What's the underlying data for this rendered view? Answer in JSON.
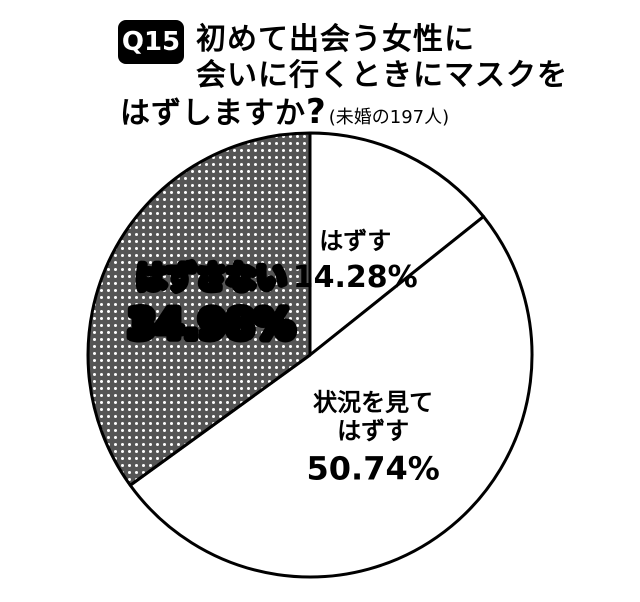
{
  "title": {
    "badge": "Q15",
    "line1": "初めて出会う女性に",
    "line2": "会いに行くときにマスクを",
    "line3": "はずしますか",
    "question_mark": "?",
    "note": "(未婚の197人)"
  },
  "chart_data": {
    "type": "pie",
    "slices": [
      {
        "label": "はずす",
        "value": 14.28,
        "value_text": "14.28%",
        "fill": "#ffffff",
        "pattern": "none"
      },
      {
        "label": "状況を見て はずす",
        "label_lines": [
          "状況を見て",
          "はずす"
        ],
        "value": 50.74,
        "value_text": "50.74%",
        "fill": "#ffffff",
        "pattern": "none"
      },
      {
        "label": "はずさない",
        "value": 34.98,
        "value_text": "34.98%",
        "fill": "#555555",
        "pattern": "dots"
      }
    ],
    "start_angle": "12 o'clock",
    "direction": "clockwise",
    "legend": "none"
  },
  "colors": {
    "ink": "#000000",
    "paper": "#ffffff",
    "dots_bg": "#555555"
  }
}
